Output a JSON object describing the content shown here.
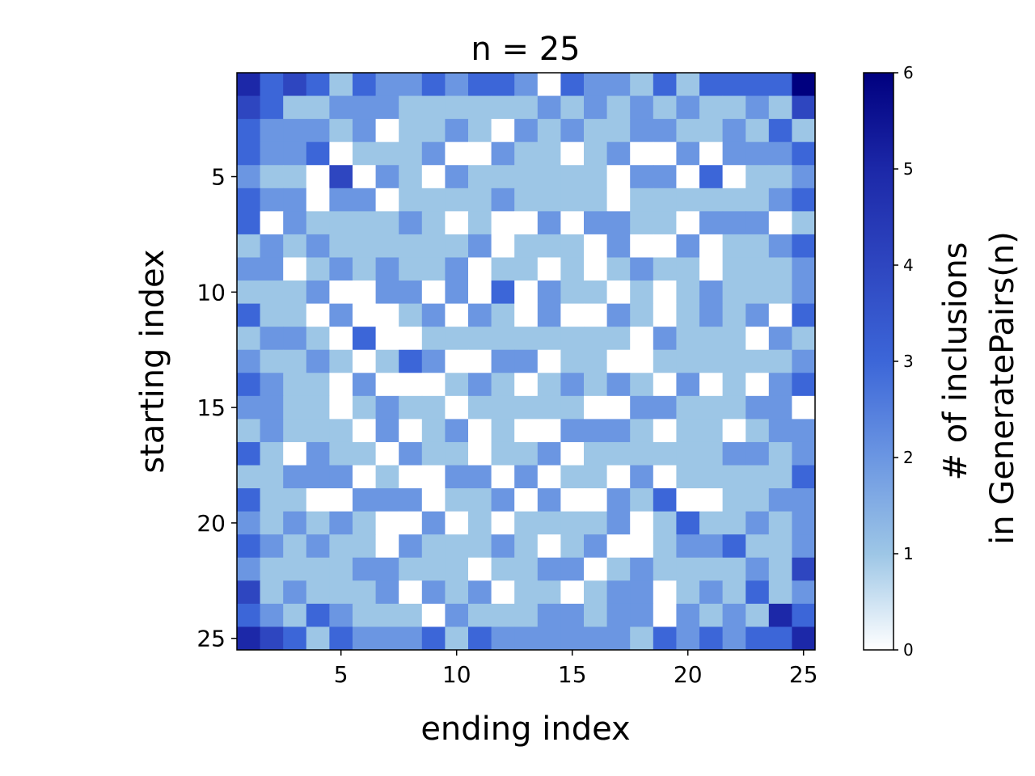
{
  "chart_data": {
    "type": "heatmap",
    "title": "n = 25",
    "xlabel": "ending index",
    "ylabel": "starting index",
    "values": [
      [
        5,
        3,
        4,
        3,
        1,
        3,
        2,
        2,
        3,
        2,
        3,
        3,
        2,
        0,
        3,
        2,
        2,
        1,
        3,
        1,
        3,
        3,
        3,
        3,
        6
      ],
      [
        4,
        3,
        1,
        1,
        2,
        2,
        2,
        1,
        1,
        1,
        1,
        1,
        1,
        2,
        1,
        2,
        1,
        2,
        1,
        2,
        1,
        1,
        2,
        1,
        4
      ],
      [
        3,
        2,
        2,
        2,
        1,
        2,
        0,
        1,
        1,
        2,
        1,
        0,
        2,
        1,
        2,
        1,
        1,
        2,
        2,
        1,
        1,
        2,
        1,
        3,
        1
      ],
      [
        3,
        2,
        2,
        3,
        0,
        1,
        1,
        1,
        2,
        0,
        0,
        2,
        1,
        1,
        0,
        1,
        2,
        0,
        0,
        2,
        0,
        2,
        2,
        2,
        3
      ],
      [
        2,
        1,
        1,
        0,
        4,
        0,
        2,
        1,
        0,
        2,
        1,
        1,
        1,
        1,
        1,
        1,
        0,
        2,
        2,
        0,
        3,
        0,
        1,
        1,
        2
      ],
      [
        3,
        2,
        2,
        0,
        2,
        2,
        0,
        1,
        1,
        1,
        1,
        2,
        1,
        1,
        1,
        1,
        0,
        1,
        1,
        1,
        1,
        1,
        1,
        2,
        3
      ],
      [
        3,
        0,
        2,
        1,
        1,
        1,
        1,
        2,
        1,
        0,
        1,
        0,
        0,
        2,
        0,
        2,
        2,
        1,
        1,
        0,
        2,
        2,
        2,
        0,
        1
      ],
      [
        1,
        2,
        1,
        2,
        1,
        1,
        1,
        1,
        1,
        1,
        2,
        0,
        1,
        1,
        1,
        0,
        2,
        0,
        0,
        2,
        0,
        1,
        1,
        2,
        3
      ],
      [
        2,
        2,
        0,
        1,
        2,
        1,
        2,
        1,
        1,
        2,
        0,
        1,
        1,
        0,
        1,
        0,
        1,
        2,
        1,
        1,
        0,
        1,
        1,
        1,
        2
      ],
      [
        1,
        1,
        1,
        2,
        0,
        0,
        2,
        2,
        0,
        2,
        0,
        3,
        0,
        2,
        1,
        1,
        0,
        1,
        0,
        1,
        2,
        1,
        1,
        1,
        2
      ],
      [
        3,
        1,
        1,
        0,
        2,
        0,
        0,
        1,
        2,
        0,
        2,
        1,
        0,
        2,
        0,
        0,
        2,
        1,
        0,
        1,
        2,
        1,
        2,
        0,
        3
      ],
      [
        1,
        2,
        2,
        1,
        0,
        3,
        0,
        0,
        1,
        1,
        1,
        1,
        1,
        1,
        1,
        1,
        1,
        0,
        2,
        1,
        1,
        1,
        0,
        2,
        1
      ],
      [
        2,
        1,
        1,
        2,
        1,
        0,
        1,
        3,
        2,
        0,
        0,
        2,
        2,
        0,
        1,
        1,
        0,
        0,
        1,
        1,
        1,
        1,
        1,
        1,
        2
      ],
      [
        3,
        2,
        1,
        1,
        0,
        2,
        0,
        0,
        0,
        1,
        2,
        1,
        0,
        1,
        2,
        1,
        2,
        1,
        0,
        2,
        0,
        1,
        0,
        2,
        3
      ],
      [
        2,
        2,
        1,
        1,
        0,
        1,
        2,
        1,
        1,
        0,
        1,
        1,
        1,
        1,
        1,
        0,
        0,
        2,
        2,
        1,
        1,
        1,
        2,
        2,
        0
      ],
      [
        1,
        2,
        1,
        1,
        1,
        0,
        2,
        0,
        1,
        2,
        0,
        1,
        0,
        0,
        2,
        2,
        2,
        1,
        0,
        1,
        1,
        0,
        1,
        2,
        2
      ],
      [
        3,
        1,
        0,
        2,
        1,
        1,
        0,
        2,
        1,
        1,
        0,
        1,
        1,
        2,
        0,
        1,
        1,
        1,
        1,
        1,
        1,
        2,
        2,
        1,
        2
      ],
      [
        1,
        1,
        2,
        2,
        2,
        0,
        1,
        0,
        0,
        2,
        2,
        0,
        2,
        0,
        1,
        1,
        0,
        2,
        0,
        1,
        1,
        1,
        1,
        1,
        3
      ],
      [
        3,
        1,
        1,
        0,
        0,
        2,
        2,
        2,
        0,
        1,
        1,
        2,
        0,
        2,
        0,
        0,
        2,
        1,
        3,
        0,
        0,
        1,
        1,
        2,
        2
      ],
      [
        2,
        1,
        2,
        1,
        2,
        1,
        0,
        0,
        2,
        0,
        1,
        0,
        1,
        1,
        1,
        1,
        2,
        0,
        1,
        3,
        1,
        1,
        2,
        1,
        2
      ],
      [
        3,
        2,
        1,
        2,
        1,
        1,
        0,
        2,
        1,
        1,
        1,
        2,
        1,
        0,
        1,
        2,
        0,
        0,
        1,
        2,
        2,
        3,
        1,
        1,
        2
      ],
      [
        2,
        1,
        1,
        1,
        1,
        2,
        2,
        1,
        1,
        1,
        0,
        1,
        1,
        2,
        2,
        0,
        1,
        2,
        1,
        1,
        1,
        1,
        2,
        1,
        4
      ],
      [
        4,
        1,
        2,
        1,
        1,
        1,
        2,
        0,
        2,
        1,
        2,
        0,
        1,
        1,
        0,
        1,
        2,
        2,
        0,
        1,
        2,
        1,
        3,
        1,
        2
      ],
      [
        3,
        2,
        1,
        3,
        2,
        1,
        1,
        1,
        0,
        2,
        1,
        1,
        1,
        2,
        2,
        1,
        2,
        2,
        0,
        2,
        1,
        2,
        1,
        5,
        3
      ],
      [
        5,
        4,
        3,
        1,
        3,
        2,
        2,
        2,
        3,
        1,
        3,
        2,
        2,
        2,
        2,
        2,
        2,
        1,
        3,
        2,
        3,
        2,
        3,
        3,
        5
      ]
    ],
    "xlim": [
      0.5,
      25.5
    ],
    "xticks": [
      5,
      10,
      15,
      20,
      25
    ],
    "ylim": [
      25.5,
      0.5
    ],
    "yticks": [
      5,
      10,
      15,
      20,
      25
    ],
    "colorbar": {
      "label": [
        "# of inclusions",
        "in GeneratePairs(n)"
      ],
      "lim": [
        0,
        6
      ],
      "ticks": [
        0,
        1,
        2,
        3,
        4,
        5,
        6
      ],
      "colors": [
        "#ffffff",
        "#9dc6e6",
        "#6b96e2",
        "#3c66d8",
        "#2e46c0",
        "#1c28a8",
        "#00007f"
      ]
    }
  }
}
